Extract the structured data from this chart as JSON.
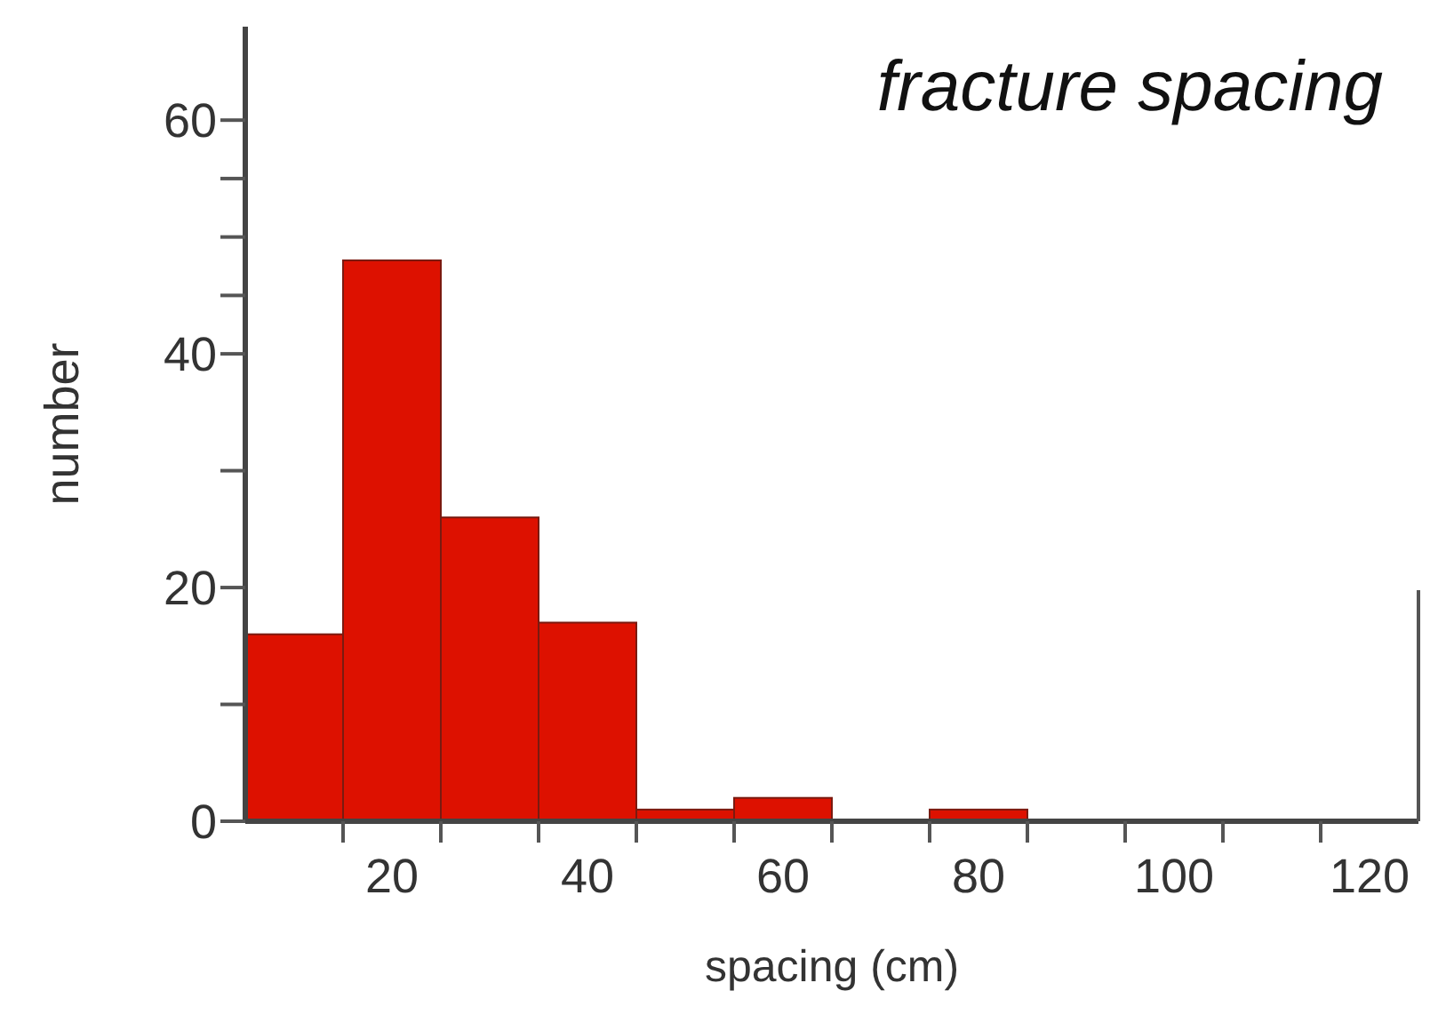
{
  "chart_data": {
    "type": "histogram",
    "title": "fracture spacing",
    "xlabel": "spacing (cm)",
    "ylabel": "number",
    "bins": [
      5,
      15,
      25,
      35,
      45,
      55,
      65,
      75,
      85
    ],
    "values": [
      16,
      48,
      26,
      17,
      1,
      2,
      0,
      1
    ],
    "color": "#dd1100",
    "xlim": [
      5,
      125
    ],
    "xticks": [
      {
        "value": 15,
        "label": null
      },
      20,
      {
        "value": 25,
        "label": null
      },
      {
        "value": 35,
        "label": null
      },
      40,
      {
        "value": 45,
        "label": null
      },
      {
        "value": 55,
        "label": null
      },
      60,
      {
        "value": 65,
        "label": null
      },
      {
        "value": 75,
        "label": null
      },
      80,
      {
        "value": 85,
        "label": null
      },
      {
        "value": 95,
        "label": null
      },
      100,
      {
        "value": 105,
        "label": null
      },
      {
        "value": 115,
        "label": null
      },
      120
    ],
    "ylim": [
      0,
      68
    ],
    "yticks": [
      0,
      {
        "value": 10,
        "label": null
      },
      20,
      {
        "value": 30,
        "label": null
      },
      40,
      {
        "value": 45,
        "label": null
      },
      {
        "value": 50,
        "label": null
      },
      {
        "value": 55,
        "label": null
      },
      60
    ],
    "grid": false
  }
}
